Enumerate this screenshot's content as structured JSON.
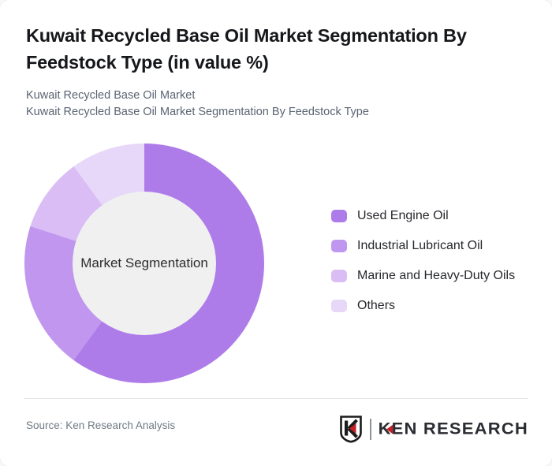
{
  "header": {
    "title": "Kuwait Recycled Base Oil Market Segmentation By Feedstock Type (in value %)",
    "subtitle_line1": "Kuwait Recycled Base Oil Market",
    "subtitle_line2": "Kuwait Recycled Base Oil Market Segmentation By Feedstock Type"
  },
  "chart_data": {
    "type": "pie",
    "variant": "donut",
    "title": "Kuwait Recycled Base Oil Market Segmentation By Feedstock Type (in value %)",
    "center_label": "Market Segmentation",
    "unit": "value %",
    "start_angle_deg": 0,
    "direction": "clockwise",
    "legend_position": "right",
    "inner_radius_ratio": 0.6,
    "hole_color": "#f0f0f1",
    "segments": [
      {
        "label": "Used Engine Oil",
        "value": 60,
        "color": "#ae7ce9"
      },
      {
        "label": "Industrial Lubricant Oil",
        "value": 20,
        "color": "#c096ef"
      },
      {
        "label": "Marine and Heavy-Duty Oils",
        "value": 10,
        "color": "#d9bdf4"
      },
      {
        "label": "Others",
        "value": 10,
        "color": "#e7d7f8"
      }
    ]
  },
  "footer": {
    "source": "Source: Ken Research Analysis",
    "logo": {
      "k": "K",
      "rest": "EN RESEARCH",
      "accent_color": "#c32127"
    }
  }
}
